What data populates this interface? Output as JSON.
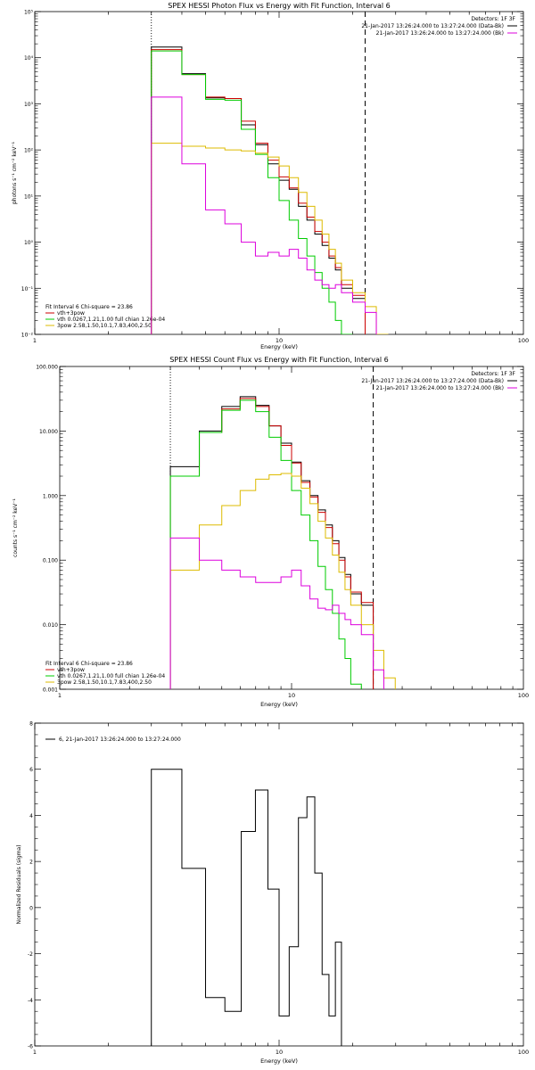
{
  "figure": {
    "colors": {
      "total": "#000000",
      "vth_3pow": "#cc0000",
      "vth": "#00cc00",
      "3pow": "#ddbb00",
      "background": "#dd00dd",
      "residual": "#000000"
    },
    "common": {
      "detectors": "Detectors: 1F 3F",
      "obs_label": "21-Jan-2017 13:26:24.000 to 13:27:24.000 (Data-Bk)",
      "bk_label": "21-Jan-2017 13:26:24.000 to 13:27:24.000 (Bk)",
      "fit_header": "Fit Interval 6   Chi-square = 23.86",
      "fit_items": [
        {
          "key": "vth_3pow",
          "label": "vth+3pow"
        },
        {
          "key": "vth",
          "label": "vth 0.0267,1.21,1.00  full chian 1.26e-04"
        },
        {
          "key": "3pow",
          "label": "3pow 2.58,1.50,10.1,7.83,400,2.50"
        }
      ]
    }
  },
  "chart_data": [
    {
      "type": "line",
      "title": "SPEX HESSI Photon Flux vs Energy with Fit Function, Interval 6",
      "xlabel": "Energy (keV)",
      "ylabel": "photons s⁻¹ cm⁻² keV⁻¹",
      "xscale": "log",
      "yscale": "log",
      "xlim": [
        1,
        100
      ],
      "ylim": [
        0.01,
        100000
      ],
      "xticks": [
        {
          "v": 1,
          "label": "1"
        },
        {
          "v": 10,
          "label": "10"
        },
        {
          "v": 100,
          "label": "100"
        }
      ],
      "yticks": [
        {
          "v": 100000,
          "label": "10⁵"
        },
        {
          "v": 10000,
          "label": "10⁴"
        },
        {
          "v": 1000,
          "label": "10³"
        },
        {
          "v": 100,
          "label": "10²"
        },
        {
          "v": 10,
          "label": "10¹"
        },
        {
          "v": 1,
          "label": "10⁰"
        },
        {
          "v": 0.1,
          "label": "10⁻¹"
        },
        {
          "v": 0.01,
          "label": "10⁻²"
        }
      ],
      "vlines": [
        {
          "x": 3,
          "style": "dotted"
        },
        {
          "x": 22.5,
          "style": "dashed"
        }
      ],
      "bin_edges": [
        3,
        4,
        5,
        6,
        7,
        8,
        9,
        10,
        11,
        12,
        13,
        14,
        15,
        16,
        17,
        18,
        20,
        22.5,
        25,
        28
      ],
      "series": [
        {
          "key": "total",
          "values": [
            17000,
            4500,
            1350,
            1300,
            350,
            130,
            50,
            22,
            14,
            6,
            3,
            1.5,
            0.85,
            0.45,
            0.25,
            0.1,
            0.06,
            null,
            null
          ]
        },
        {
          "key": "vth_3pow",
          "values": [
            15000,
            4300,
            1400,
            1300,
            420,
            140,
            60,
            26,
            15,
            7,
            3.5,
            1.7,
            1.0,
            0.5,
            0.28,
            0.12,
            0.07,
            null,
            null
          ]
        },
        {
          "key": "vth",
          "values": [
            14000,
            4300,
            1250,
            1200,
            280,
            80,
            25,
            8,
            3,
            1.2,
            0.5,
            0.22,
            0.1,
            0.05,
            0.02,
            0.01,
            null,
            null,
            null
          ]
        },
        {
          "key": "3pow",
          "values": [
            140,
            120,
            110,
            100,
            95,
            85,
            70,
            45,
            25,
            12,
            6,
            3,
            1.5,
            0.7,
            0.35,
            0.15,
            0.08,
            0.04,
            0.01
          ]
        },
        {
          "key": "background",
          "values": [
            1400,
            50,
            5,
            2.5,
            1.0,
            0.5,
            0.6,
            0.5,
            0.7,
            0.45,
            0.25,
            0.15,
            0.12,
            0.1,
            0.12,
            0.08,
            0.05,
            0.03,
            null
          ]
        }
      ]
    },
    {
      "type": "line",
      "title": "SPEX HESSI Count Flux vs Energy with Fit Function, Interval 6",
      "xlabel": "Energy (keV)",
      "ylabel": "counts s⁻¹ cm⁻² keV⁻¹",
      "xscale": "log",
      "yscale": "log",
      "xlim": [
        1,
        100
      ],
      "ylim": [
        0.001,
        100
      ],
      "xticks": [
        {
          "v": 1,
          "label": "1"
        },
        {
          "v": 10,
          "label": "10"
        },
        {
          "v": 100,
          "label": "100"
        }
      ],
      "yticks": [
        {
          "v": 100,
          "label": "100.000"
        },
        {
          "v": 10,
          "label": "10.000"
        },
        {
          "v": 1,
          "label": "1.000"
        },
        {
          "v": 0.1,
          "label": "0.100"
        },
        {
          "v": 0.01,
          "label": "0.010"
        },
        {
          "v": 0.001,
          "label": "0.001"
        }
      ],
      "vlines": [
        {
          "x": 3,
          "style": "dotted"
        },
        {
          "x": 22.5,
          "style": "dashed"
        }
      ],
      "bin_edges": [
        3,
        4,
        5,
        6,
        7,
        8,
        9,
        10,
        11,
        12,
        13,
        14,
        15,
        16,
        17,
        18,
        20,
        22.5,
        25,
        28
      ],
      "series": [
        {
          "key": "total",
          "values": [
            2.8,
            10,
            24,
            34,
            25,
            12,
            6.5,
            3.3,
            1.7,
            1.0,
            0.6,
            0.35,
            0.2,
            0.11,
            0.06,
            0.03,
            0.02,
            null,
            null
          ]
        },
        {
          "key": "vth_3pow",
          "values": [
            2.0,
            9.5,
            22,
            32,
            24,
            12,
            6.0,
            3.2,
            1.6,
            0.95,
            0.55,
            0.32,
            0.18,
            0.1,
            0.055,
            0.032,
            0.022,
            null,
            null
          ]
        },
        {
          "key": "vth",
          "values": [
            2.0,
            9.5,
            21,
            30,
            20,
            8,
            3.5,
            1.2,
            0.5,
            0.2,
            0.08,
            0.035,
            0.015,
            0.006,
            0.003,
            0.0012,
            null,
            null,
            null
          ]
        },
        {
          "key": "3pow",
          "values": [
            0.07,
            0.35,
            0.7,
            1.2,
            1.8,
            2.1,
            2.2,
            2.0,
            1.3,
            0.75,
            0.4,
            0.22,
            0.12,
            0.065,
            0.035,
            0.02,
            0.01,
            0.004,
            0.0015
          ]
        },
        {
          "key": "background",
          "values": [
            0.22,
            0.1,
            0.07,
            0.055,
            0.045,
            0.045,
            0.055,
            0.07,
            0.04,
            0.025,
            0.018,
            0.017,
            0.02,
            0.015,
            0.012,
            0.01,
            0.007,
            0.002,
            null
          ]
        }
      ]
    },
    {
      "type": "line",
      "title": "",
      "xlabel": "Energy (keV)",
      "ylabel": "Normalized Residuals (sigma)",
      "xscale": "log",
      "yscale": "linear",
      "xlim": [
        1,
        100
      ],
      "ylim": [
        -6,
        8
      ],
      "xticks": [
        {
          "v": 1,
          "label": "1"
        },
        {
          "v": 10,
          "label": "10"
        },
        {
          "v": 100,
          "label": "100"
        }
      ],
      "yticks": [
        {
          "v": 8,
          "label": "8"
        },
        {
          "v": 6,
          "label": "6"
        },
        {
          "v": 4,
          "label": "4"
        },
        {
          "v": 2,
          "label": "2"
        },
        {
          "v": 0,
          "label": "0"
        },
        {
          "v": -2,
          "label": "-2"
        },
        {
          "v": -4,
          "label": "-4"
        },
        {
          "v": -6,
          "label": "-6"
        }
      ],
      "legend": "6, 21-Jan-2017 13:26:24.000 to 13:27:24.000",
      "bin_edges": [
        3,
        4,
        5,
        6,
        7,
        8,
        9,
        10,
        11,
        12,
        13,
        14,
        15,
        16,
        17,
        18,
        20,
        22.5
      ],
      "series": [
        {
          "key": "residual",
          "values": [
            6.0,
            1.7,
            -3.9,
            -4.5,
            3.3,
            5.1,
            0.8,
            -4.7,
            -1.7,
            3.9,
            4.8,
            1.5,
            -2.9,
            -4.7,
            -1.5
          ]
        }
      ]
    }
  ]
}
